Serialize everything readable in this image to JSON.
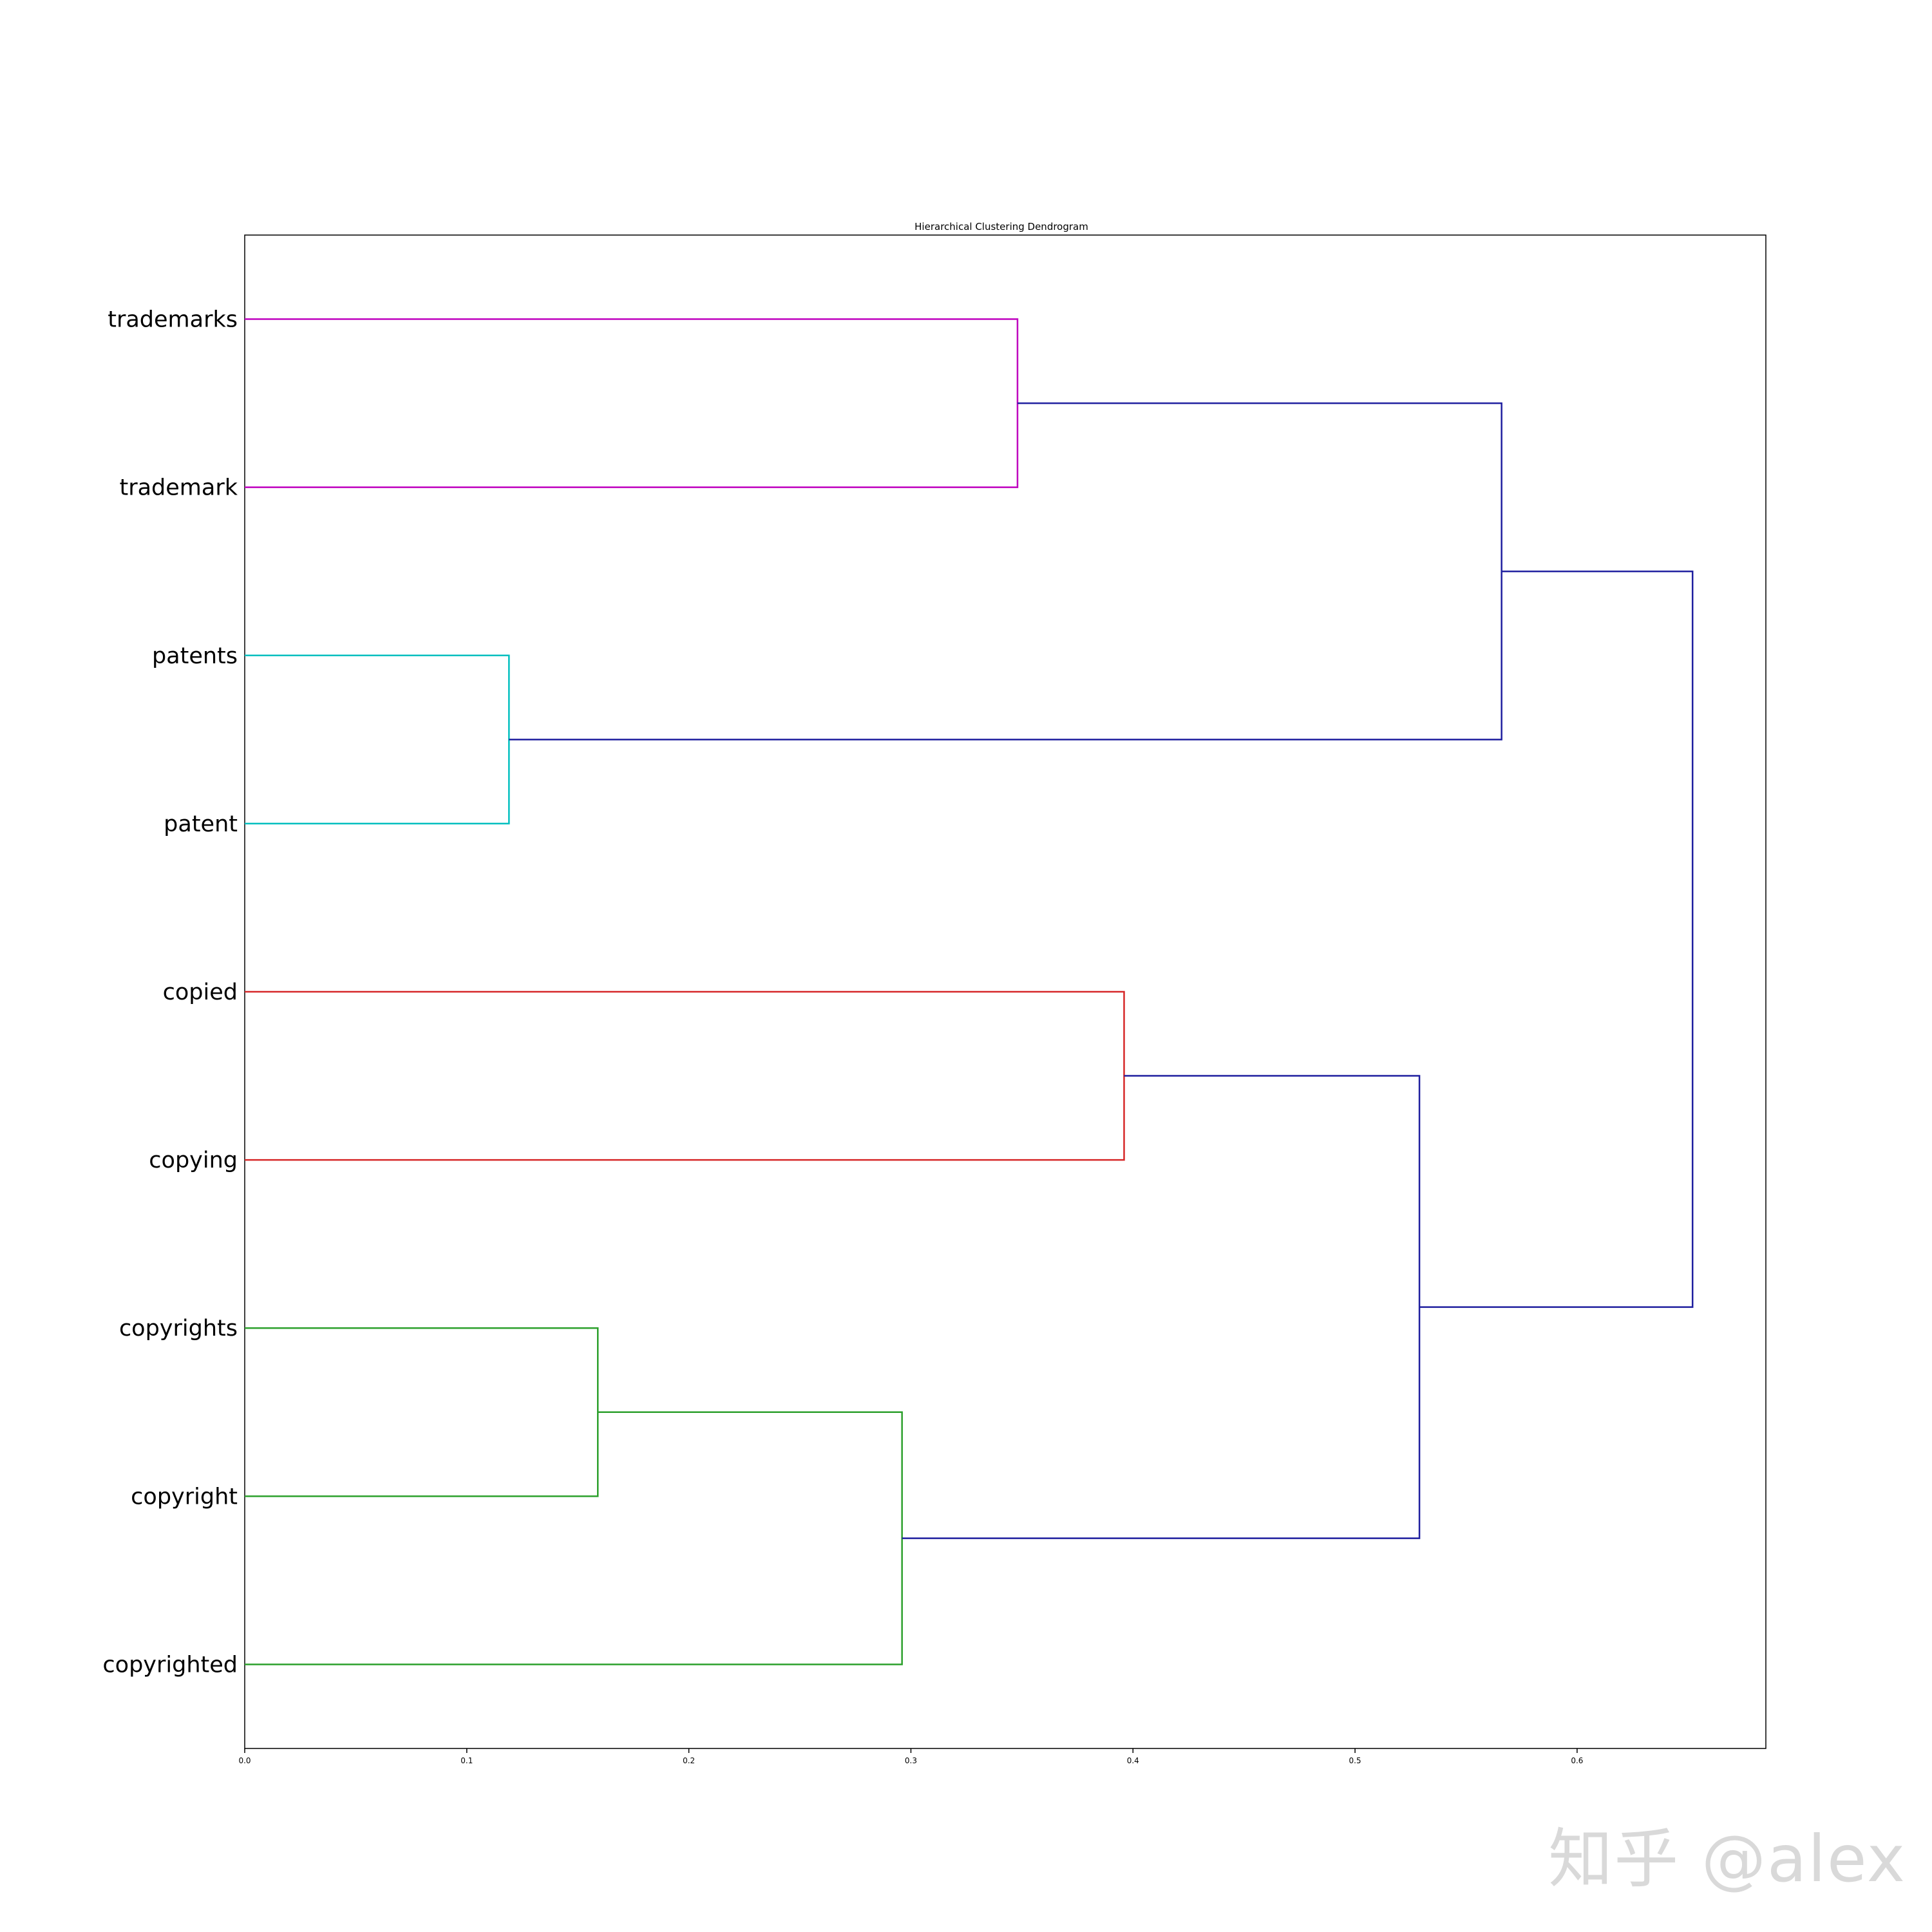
{
  "chart_data": {
    "type": "dendrogram",
    "orientation": "horizontal",
    "title": "Hierarchical Clustering Dendrogram",
    "xlim": [
      0,
      0.685
    ],
    "xticks": [
      "0.0",
      "0.1",
      "0.2",
      "0.3",
      "0.4",
      "0.5",
      "0.6"
    ],
    "leaves": [
      "trademarks",
      "trademark",
      "patents",
      "patent",
      "copied",
      "copying",
      "copyrights",
      "copyright",
      "copyrighted"
    ],
    "merges": [
      {
        "id": "c1",
        "children": [
          "trademarks",
          "trademark"
        ],
        "height": 0.348,
        "color": "#bf00bf"
      },
      {
        "id": "c2",
        "children": [
          "patents",
          "patent"
        ],
        "height": 0.119,
        "color": "#00bfbf"
      },
      {
        "id": "c3",
        "children": [
          "copied",
          "copying"
        ],
        "height": 0.396,
        "color": "#d62728"
      },
      {
        "id": "c4",
        "children": [
          "copyrights",
          "copyright"
        ],
        "height": 0.159,
        "color": "#2ca02c"
      },
      {
        "id": "c5",
        "children": [
          "c4",
          "copyrighted"
        ],
        "height": 0.296,
        "color": "#2ca02c"
      },
      {
        "id": "c6",
        "children": [
          "c1",
          "c2"
        ],
        "height": 0.566,
        "color": "#1f1f9f"
      },
      {
        "id": "c7",
        "children": [
          "c3",
          "c5"
        ],
        "height": 0.529,
        "color": "#1f1f9f"
      },
      {
        "id": "c8",
        "children": [
          "c6",
          "c7"
        ],
        "height": 0.652,
        "color": "#1f1f9f"
      }
    ]
  },
  "watermark": "知乎 @alex"
}
